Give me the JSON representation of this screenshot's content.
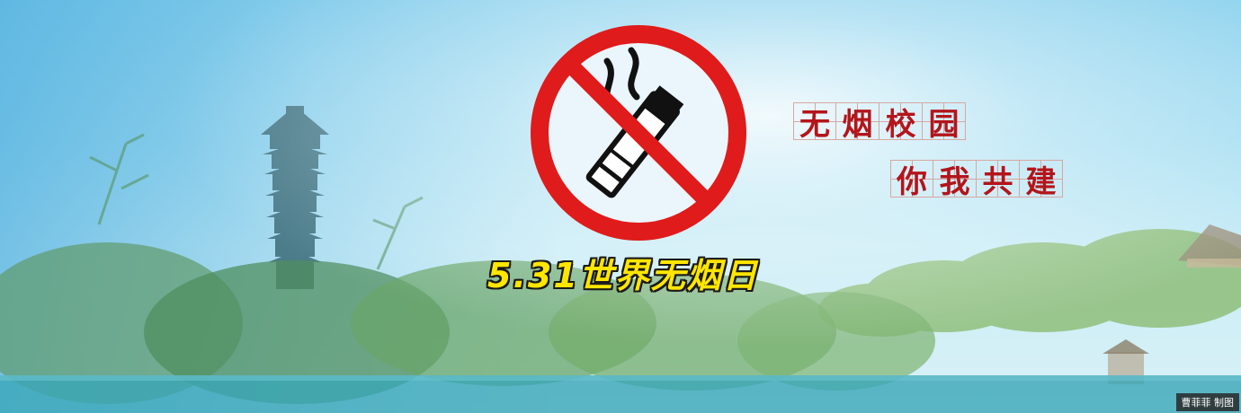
{
  "banner": {
    "slogan_line1": [
      "无",
      "烟",
      "校",
      "园"
    ],
    "slogan_line2": [
      "你",
      "我",
      "共",
      "建"
    ],
    "day_caption": "5.31世界无烟日",
    "credit": "曹菲菲 制图"
  },
  "icons": {
    "sign": "no-smoking-icon"
  },
  "colors": {
    "sky": "#a9dff2",
    "sign_red": "#e01b1b",
    "slogan_red": "#b3151b",
    "caption_yellow": "#ffe600"
  }
}
